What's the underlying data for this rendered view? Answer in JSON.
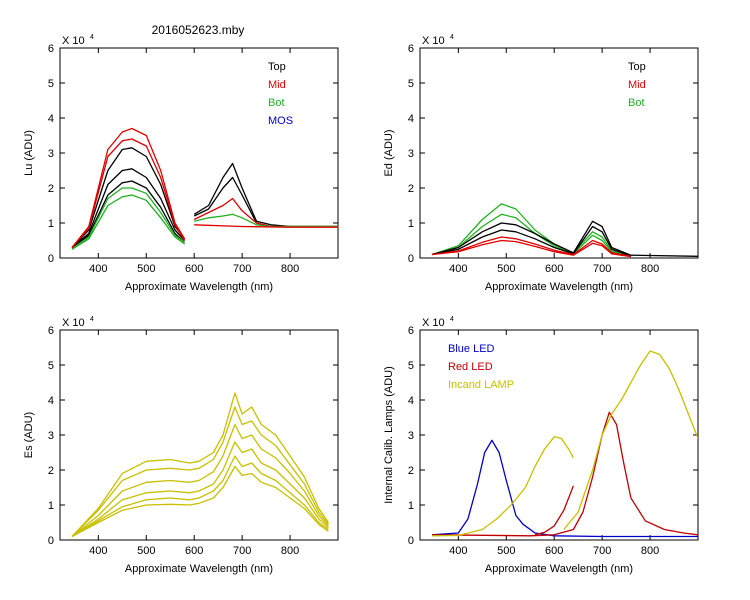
{
  "figure_title": "2016052623.mby",
  "colors": {
    "black": "#000000",
    "red": "#e00000",
    "green": "#20b020",
    "blue": "#0000c8",
    "yellow": "#c8c000",
    "darkred": "#c00000"
  },
  "chart_data": [
    {
      "id": "lu",
      "type": "line",
      "title": "2016052623.mby",
      "ylabel": "Lu (ADU)",
      "xlabel": "Approximate Wavelength (nm)",
      "multiplier": "X 10",
      "exponent": "4",
      "xlim": [
        320,
        900
      ],
      "ylim": [
        0,
        6
      ],
      "xticks": [
        400,
        500,
        600,
        700,
        800
      ],
      "yticks": [
        0,
        1,
        2,
        3,
        4,
        5,
        6
      ],
      "legend": [
        {
          "label": "Top",
          "color": "#000000"
        },
        {
          "label": "Mid",
          "color": "#e00000"
        },
        {
          "label": "Bot",
          "color": "#20b020"
        },
        {
          "label": "MOS",
          "color": "#0000c8"
        }
      ],
      "series": [
        {
          "name": "Top-1",
          "color": "#000000",
          "x": [
            345,
            380,
            420,
            450,
            470,
            500,
            530,
            560,
            580
          ],
          "y": [
            0.3,
            0.8,
            2.5,
            3.1,
            3.15,
            2.9,
            2.1,
            0.9,
            0.55
          ]
        },
        {
          "name": "Top-2",
          "color": "#000000",
          "x": [
            345,
            380,
            420,
            450,
            470,
            500,
            530,
            560,
            580
          ],
          "y": [
            0.3,
            0.7,
            2.1,
            2.5,
            2.55,
            2.3,
            1.7,
            0.8,
            0.5
          ]
        },
        {
          "name": "Top-3",
          "color": "#000000",
          "x": [
            345,
            380,
            420,
            450,
            470,
            500,
            530,
            560,
            580
          ],
          "y": [
            0.3,
            0.65,
            1.8,
            2.15,
            2.2,
            2.0,
            1.45,
            0.7,
            0.45
          ]
        },
        {
          "name": "Mid-1",
          "color": "#e00000",
          "x": [
            345,
            380,
            420,
            450,
            470,
            500,
            530,
            560,
            580
          ],
          "y": [
            0.3,
            0.9,
            3.1,
            3.6,
            3.7,
            3.5,
            2.5,
            1.0,
            0.55
          ]
        },
        {
          "name": "Mid-2",
          "color": "#e00000",
          "x": [
            345,
            380,
            420,
            450,
            470,
            500,
            530,
            560,
            580
          ],
          "y": [
            0.3,
            0.85,
            2.9,
            3.35,
            3.4,
            3.2,
            2.3,
            0.95,
            0.5
          ]
        },
        {
          "name": "Bot-1",
          "color": "#20b020",
          "x": [
            345,
            380,
            420,
            450,
            470,
            500,
            530,
            560,
            580
          ],
          "y": [
            0.25,
            0.6,
            1.7,
            2.0,
            2.0,
            1.85,
            1.3,
            0.65,
            0.45
          ]
        },
        {
          "name": "Bot-2",
          "color": "#20b020",
          "x": [
            345,
            380,
            420,
            450,
            470,
            500,
            530,
            560,
            580
          ],
          "y": [
            0.25,
            0.55,
            1.5,
            1.75,
            1.8,
            1.65,
            1.15,
            0.6,
            0.4
          ]
        },
        {
          "name": "Top-4",
          "color": "#000000",
          "x": [
            600,
            630,
            660,
            680,
            700,
            730,
            760,
            800,
            900
          ],
          "y": [
            1.25,
            1.5,
            2.3,
            2.7,
            2.0,
            1.05,
            0.95,
            0.9,
            0.9
          ]
        },
        {
          "name": "Top-5",
          "color": "#000000",
          "x": [
            600,
            630,
            660,
            680,
            700,
            730,
            760,
            800,
            900
          ],
          "y": [
            1.2,
            1.4,
            2.0,
            2.3,
            1.8,
            1.0,
            0.9,
            0.9,
            0.9
          ]
        },
        {
          "name": "Mid-3",
          "color": "#e00000",
          "x": [
            600,
            630,
            660,
            680,
            700,
            730,
            760,
            800,
            900
          ],
          "y": [
            1.1,
            1.3,
            1.5,
            1.7,
            1.35,
            1.0,
            0.9,
            0.9,
            0.9
          ]
        },
        {
          "name": "Bot-3",
          "color": "#20b020",
          "x": [
            600,
            630,
            660,
            680,
            700,
            730,
            760,
            800,
            900
          ],
          "y": [
            1.05,
            1.15,
            1.2,
            1.25,
            1.15,
            0.95,
            0.9,
            0.9,
            0.9
          ]
        },
        {
          "name": "Dark",
          "color": "#e00000",
          "x": [
            600,
            700,
            800,
            900
          ],
          "y": [
            0.95,
            0.9,
            0.88,
            0.88
          ]
        }
      ]
    },
    {
      "id": "ed",
      "type": "line",
      "ylabel": "Ed  (ADU)",
      "xlabel": "Approximate Wavelength (nm)",
      "multiplier": "X 10",
      "exponent": "4",
      "xlim": [
        320,
        900
      ],
      "ylim": [
        0,
        6
      ],
      "xticks": [
        400,
        500,
        600,
        700,
        800
      ],
      "yticks": [
        0,
        1,
        2,
        3,
        4,
        5,
        6
      ],
      "legend": [
        {
          "label": "Top",
          "color": "#000000"
        },
        {
          "label": "Mid",
          "color": "#e00000"
        },
        {
          "label": "Bot",
          "color": "#20b020"
        }
      ],
      "series": [
        {
          "name": "Bot-1",
          "color": "#20b020",
          "x": [
            345,
            400,
            450,
            490,
            520,
            560,
            600,
            640,
            680,
            700,
            720,
            760
          ],
          "y": [
            0.1,
            0.35,
            1.1,
            1.55,
            1.4,
            0.8,
            0.4,
            0.15,
            0.75,
            0.6,
            0.2,
            0.05
          ]
        },
        {
          "name": "Bot-2",
          "color": "#20b020",
          "x": [
            345,
            400,
            450,
            490,
            520,
            560,
            600,
            640,
            680,
            700,
            720,
            760
          ],
          "y": [
            0.1,
            0.3,
            0.9,
            1.25,
            1.15,
            0.7,
            0.35,
            0.12,
            0.65,
            0.5,
            0.18,
            0.05
          ]
        },
        {
          "name": "Top-1",
          "color": "#000000",
          "x": [
            345,
            400,
            450,
            490,
            520,
            560,
            600,
            640,
            680,
            700,
            720,
            760,
            900
          ],
          "y": [
            0.1,
            0.3,
            0.75,
            1.0,
            0.95,
            0.7,
            0.4,
            0.15,
            1.05,
            0.9,
            0.3,
            0.08,
            0.05
          ]
        },
        {
          "name": "Top-2",
          "color": "#000000",
          "x": [
            345,
            400,
            450,
            490,
            520,
            560,
            600,
            640,
            680,
            700,
            720,
            760
          ],
          "y": [
            0.1,
            0.25,
            0.6,
            0.8,
            0.75,
            0.55,
            0.3,
            0.12,
            0.9,
            0.75,
            0.25,
            0.06
          ]
        },
        {
          "name": "Mid-1",
          "color": "#e00000",
          "x": [
            345,
            400,
            450,
            490,
            520,
            560,
            600,
            640,
            680,
            700,
            720,
            760
          ],
          "y": [
            0.1,
            0.2,
            0.45,
            0.6,
            0.55,
            0.4,
            0.22,
            0.1,
            0.5,
            0.4,
            0.15,
            0.05
          ]
        },
        {
          "name": "Mid-2",
          "color": "#e00000",
          "x": [
            345,
            400,
            450,
            490,
            520,
            560,
            600,
            640,
            680,
            700,
            720,
            760
          ],
          "y": [
            0.1,
            0.18,
            0.38,
            0.5,
            0.47,
            0.33,
            0.18,
            0.08,
            0.42,
            0.35,
            0.12,
            0.04
          ]
        }
      ]
    },
    {
      "id": "es",
      "type": "line",
      "ylabel": "Es  (ADU)",
      "xlabel": "Approximate Wavelength (nm)",
      "multiplier": "X 10",
      "exponent": "4",
      "xlim": [
        320,
        900
      ],
      "ylim": [
        0,
        6
      ],
      "xticks": [
        400,
        500,
        600,
        700,
        800
      ],
      "yticks": [
        0,
        1,
        2,
        3,
        4,
        5,
        6
      ],
      "series": [
        {
          "name": "Es-1",
          "color": "#c8c000",
          "x": [
            345,
            400,
            450,
            500,
            550,
            590,
            610,
            640,
            660,
            685,
            700,
            720,
            740,
            770,
            800,
            830,
            860,
            880
          ],
          "y": [
            0.1,
            0.9,
            1.9,
            2.25,
            2.3,
            2.2,
            2.25,
            2.5,
            3.0,
            4.2,
            3.6,
            3.8,
            3.3,
            3.0,
            2.4,
            1.8,
            0.9,
            0.5
          ]
        },
        {
          "name": "Es-2",
          "color": "#c8c000",
          "x": [
            345,
            400,
            450,
            500,
            550,
            590,
            610,
            640,
            660,
            685,
            700,
            720,
            740,
            770,
            800,
            830,
            860,
            880
          ],
          "y": [
            0.1,
            0.85,
            1.7,
            2.0,
            2.05,
            2.0,
            2.05,
            2.3,
            2.8,
            3.8,
            3.3,
            3.4,
            3.0,
            2.7,
            2.15,
            1.6,
            0.8,
            0.45
          ]
        },
        {
          "name": "Es-3",
          "color": "#c8c000",
          "x": [
            345,
            400,
            450,
            500,
            550,
            590,
            610,
            640,
            660,
            685,
            700,
            720,
            740,
            770,
            800,
            830,
            860,
            880
          ],
          "y": [
            0.1,
            0.7,
            1.4,
            1.65,
            1.7,
            1.65,
            1.7,
            1.95,
            2.4,
            3.3,
            2.9,
            3.0,
            2.6,
            2.35,
            1.9,
            1.4,
            0.7,
            0.4
          ]
        },
        {
          "name": "Es-4",
          "color": "#c8c000",
          "x": [
            345,
            400,
            450,
            500,
            550,
            590,
            610,
            640,
            660,
            685,
            700,
            720,
            740,
            770,
            800,
            830,
            860,
            880
          ],
          "y": [
            0.1,
            0.6,
            1.15,
            1.35,
            1.4,
            1.35,
            1.4,
            1.6,
            2.0,
            2.8,
            2.5,
            2.6,
            2.2,
            2.0,
            1.6,
            1.2,
            0.6,
            0.35
          ]
        },
        {
          "name": "Es-5",
          "color": "#c8c000",
          "x": [
            345,
            400,
            450,
            500,
            550,
            590,
            610,
            640,
            660,
            685,
            700,
            720,
            740,
            770,
            800,
            830,
            860,
            880
          ],
          "y": [
            0.1,
            0.55,
            0.95,
            1.15,
            1.2,
            1.15,
            1.2,
            1.4,
            1.7,
            2.4,
            2.1,
            2.2,
            1.9,
            1.7,
            1.35,
            1.0,
            0.5,
            0.3
          ]
        },
        {
          "name": "Es-6",
          "color": "#c8c000",
          "x": [
            345,
            400,
            450,
            500,
            550,
            590,
            610,
            640,
            660,
            685,
            700,
            720,
            740,
            770,
            800,
            830,
            860,
            880
          ],
          "y": [
            0.1,
            0.5,
            0.85,
            1.0,
            1.02,
            1.0,
            1.05,
            1.2,
            1.5,
            2.1,
            1.85,
            1.9,
            1.65,
            1.5,
            1.2,
            0.9,
            0.45,
            0.25
          ]
        }
      ]
    },
    {
      "id": "lamps",
      "type": "line",
      "ylabel": "Internal Calib. Lamps (ADU)",
      "xlabel": "Approximate Wavelength (nm)",
      "multiplier": "X 10",
      "exponent": "4",
      "xlim": [
        320,
        900
      ],
      "ylim": [
        0,
        6
      ],
      "xticks": [
        400,
        500,
        600,
        700,
        800
      ],
      "yticks": [
        0,
        1,
        2,
        3,
        4,
        5,
        6
      ],
      "legend": [
        {
          "label": "Blue LED",
          "color": "#0000c8"
        },
        {
          "label": "Red LED",
          "color": "#c00000"
        },
        {
          "label": "Incand LAMP",
          "color": "#c8c000"
        }
      ],
      "series": [
        {
          "name": "Blue LED",
          "color": "#0000c8",
          "x": [
            345,
            400,
            420,
            440,
            455,
            470,
            485,
            500,
            510,
            520,
            535,
            560,
            600,
            700,
            900
          ],
          "y": [
            0.15,
            0.2,
            0.6,
            1.6,
            2.5,
            2.85,
            2.5,
            1.7,
            1.2,
            0.7,
            0.45,
            0.2,
            0.12,
            0.1,
            0.1
          ]
        },
        {
          "name": "Red LED",
          "color": "#c00000",
          "x": [
            345,
            550,
            600,
            640,
            660,
            680,
            700,
            715,
            730,
            745,
            760,
            790,
            830,
            870,
            900
          ],
          "y": [
            0.15,
            0.12,
            0.15,
            0.3,
            0.8,
            1.8,
            3.0,
            3.65,
            3.3,
            2.2,
            1.2,
            0.55,
            0.3,
            0.2,
            0.15
          ]
        },
        {
          "name": "Red LED 2",
          "color": "#c00000",
          "x": [
            560,
            580,
            600,
            620,
            640
          ],
          "y": [
            0.15,
            0.22,
            0.4,
            0.85,
            1.55
          ]
        },
        {
          "name": "Incand LAMP",
          "color": "#c8c000",
          "x": [
            345,
            400,
            450,
            480,
            510,
            540,
            560,
            580,
            600,
            615,
            630,
            640
          ],
          "y": [
            0.12,
            0.13,
            0.3,
            0.6,
            1.0,
            1.5,
            2.1,
            2.6,
            2.95,
            2.9,
            2.6,
            2.35
          ]
        },
        {
          "name": "Incand LAMP 2",
          "color": "#c8c000",
          "x": [
            620,
            650,
            680,
            700,
            720,
            740,
            760,
            780,
            800,
            820,
            840,
            860,
            880,
            900
          ],
          "y": [
            0.3,
            0.8,
            2.0,
            3.0,
            3.6,
            4.0,
            4.5,
            5.0,
            5.4,
            5.3,
            4.9,
            4.3,
            3.6,
            2.9
          ]
        }
      ]
    }
  ]
}
